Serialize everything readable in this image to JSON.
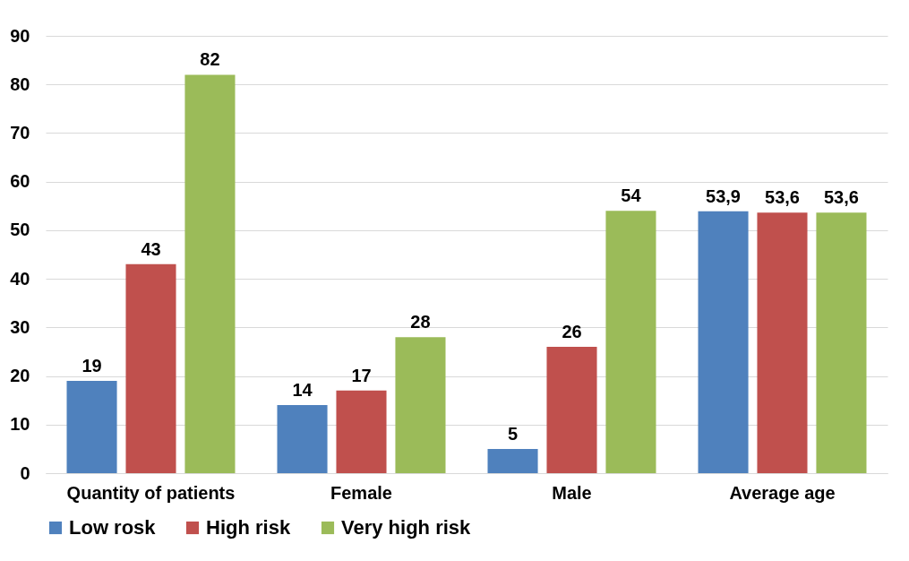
{
  "chart_data": {
    "type": "bar",
    "categories": [
      "Quantity of patients",
      "Female",
      "Male",
      "Average age"
    ],
    "series": [
      {
        "name": "Low rosk",
        "color": "#4f81bd",
        "values": [
          19,
          14,
          5,
          53.9
        ],
        "value_labels": [
          "19",
          "14",
          "5",
          "53,9"
        ]
      },
      {
        "name": "High risk",
        "color": "#c0504d",
        "values": [
          43,
          17,
          26,
          53.6
        ],
        "value_labels": [
          "43",
          "17",
          "26",
          "53,6"
        ]
      },
      {
        "name": "Very high risk",
        "color": "#9bbb59",
        "values": [
          82,
          28,
          54,
          53.6
        ],
        "value_labels": [
          "82",
          "28",
          "54",
          "53,6"
        ]
      }
    ],
    "ylim": [
      0,
      90
    ],
    "yticks": [
      0,
      10,
      20,
      30,
      40,
      50,
      60,
      70,
      80,
      90
    ],
    "grid": "y",
    "legend": "bottom"
  }
}
